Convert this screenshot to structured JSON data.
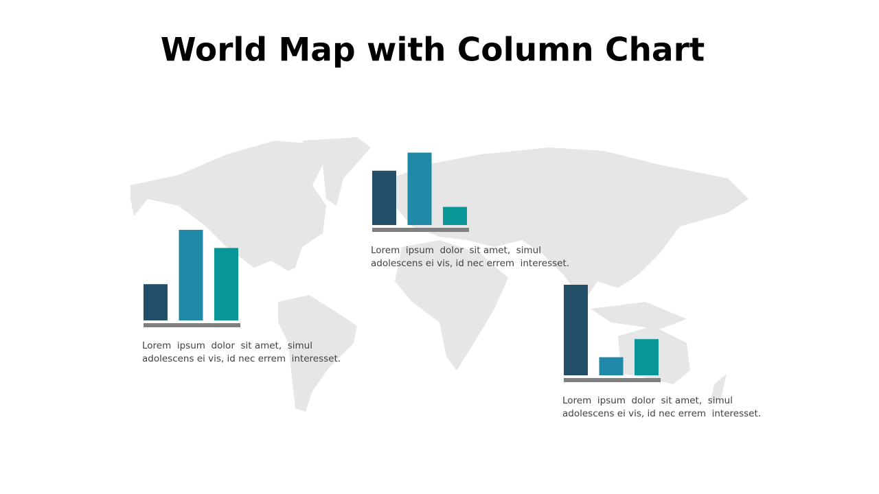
{
  "title": "World Map with Column Chart",
  "chart_data": [
    {
      "type": "bar",
      "values": [
        2,
        5,
        4
      ],
      "colors": [
        "#234e68",
        "#2189a8",
        "#0a9696"
      ],
      "annotation": [
        "Lorem  ipsum  dolor  sit amet,  simul",
        "adolescens ei vis, id nec errem  interesset."
      ]
    },
    {
      "type": "bar",
      "values": [
        3,
        4,
        1
      ],
      "colors": [
        "#234e68",
        "#2189a8",
        "#0a9696"
      ],
      "annotation": [
        "Lorem  ipsum  dolor  sit amet,  simul",
        "adolescens ei vis, id nec errem  interesset."
      ]
    },
    {
      "type": "bar",
      "values": [
        5,
        1,
        2
      ],
      "colors": [
        "#234e68",
        "#2189a8",
        "#0a9696"
      ],
      "annotation": [
        "Lorem  ipsum  dolor  sit amet,  simul",
        "adolescens ei vis, id nec errem  interesset."
      ]
    }
  ]
}
